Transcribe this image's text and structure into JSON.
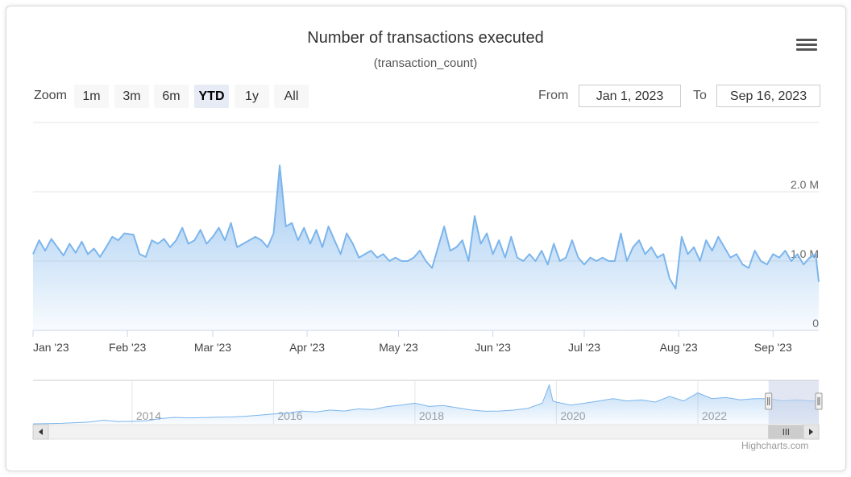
{
  "chart_data": {
    "type": "area",
    "title": "Number of transactions executed",
    "subtitle": "(transaction_count)",
    "y_ticks": [
      {
        "value": 0,
        "label": "0"
      },
      {
        "value": 1000000,
        "label": "1.0 M"
      },
      {
        "value": 2000000,
        "label": "2.0 M"
      }
    ],
    "ylim": [
      0,
      3000000
    ],
    "x_ticks": [
      {
        "date": "2023-01-01",
        "label": "Jan '23"
      },
      {
        "date": "2023-02-01",
        "label": "Feb '23"
      },
      {
        "date": "2023-03-01",
        "label": "Mar '23"
      },
      {
        "date": "2023-04-01",
        "label": "Apr '23"
      },
      {
        "date": "2023-05-01",
        "label": "May '23"
      },
      {
        "date": "2023-06-01",
        "label": "Jun '23"
      },
      {
        "date": "2023-07-01",
        "label": "Jul '23"
      },
      {
        "date": "2023-08-01",
        "label": "Aug '23"
      },
      {
        "date": "2023-09-01",
        "label": "Sep '23"
      }
    ],
    "xlim": [
      "2023-01-01",
      "2023-09-16"
    ],
    "series": [
      {
        "x": [
          "2023-01-01",
          "2023-01-03",
          "2023-01-05",
          "2023-01-07",
          "2023-01-09",
          "2023-01-11",
          "2023-01-13",
          "2023-01-15",
          "2023-01-17",
          "2023-01-19",
          "2023-01-21",
          "2023-01-23",
          "2023-01-25",
          "2023-01-27",
          "2023-01-29",
          "2023-01-31",
          "2023-02-03",
          "2023-02-05",
          "2023-02-07",
          "2023-02-09",
          "2023-02-11",
          "2023-02-13",
          "2023-02-15",
          "2023-02-17",
          "2023-02-19",
          "2023-02-21",
          "2023-02-23",
          "2023-02-25",
          "2023-02-27",
          "2023-03-01",
          "2023-03-03",
          "2023-03-05",
          "2023-03-07",
          "2023-03-09",
          "2023-03-11",
          "2023-03-13",
          "2023-03-15",
          "2023-03-17",
          "2023-03-19",
          "2023-03-21",
          "2023-03-23",
          "2023-03-25",
          "2023-03-27",
          "2023-03-29",
          "2023-03-31",
          "2023-04-02",
          "2023-04-04",
          "2023-04-06",
          "2023-04-08",
          "2023-04-10",
          "2023-04-12",
          "2023-04-14",
          "2023-04-16",
          "2023-04-18",
          "2023-04-20",
          "2023-04-22",
          "2023-04-24",
          "2023-04-26",
          "2023-04-28",
          "2023-04-30",
          "2023-05-02",
          "2023-05-04",
          "2023-05-06",
          "2023-05-08",
          "2023-05-10",
          "2023-05-12",
          "2023-05-14",
          "2023-05-16",
          "2023-05-18",
          "2023-05-20",
          "2023-05-22",
          "2023-05-24",
          "2023-05-26",
          "2023-05-28",
          "2023-05-30",
          "2023-06-01",
          "2023-06-03",
          "2023-06-05",
          "2023-06-07",
          "2023-06-09",
          "2023-06-11",
          "2023-06-13",
          "2023-06-15",
          "2023-06-17",
          "2023-06-19",
          "2023-06-21",
          "2023-06-23",
          "2023-06-25",
          "2023-06-27",
          "2023-06-29",
          "2023-07-01",
          "2023-07-03",
          "2023-07-05",
          "2023-07-07",
          "2023-07-09",
          "2023-07-11",
          "2023-07-13",
          "2023-07-15",
          "2023-07-17",
          "2023-07-19",
          "2023-07-21",
          "2023-07-23",
          "2023-07-25",
          "2023-07-27",
          "2023-07-29",
          "2023-07-31",
          "2023-08-02",
          "2023-08-04",
          "2023-08-06",
          "2023-08-08",
          "2023-08-10",
          "2023-08-12",
          "2023-08-14",
          "2023-08-16",
          "2023-08-18",
          "2023-08-20",
          "2023-08-22",
          "2023-08-24",
          "2023-08-26",
          "2023-08-28",
          "2023-08-30",
          "2023-09-01",
          "2023-09-03",
          "2023-09-05",
          "2023-09-07",
          "2023-09-09",
          "2023-09-11",
          "2023-09-13",
          "2023-09-15",
          "2023-09-16"
        ],
        "y": [
          1100000,
          1300000,
          1150000,
          1320000,
          1200000,
          1080000,
          1250000,
          1120000,
          1280000,
          1100000,
          1180000,
          1060000,
          1200000,
          1350000,
          1300000,
          1400000,
          1380000,
          1100000,
          1060000,
          1300000,
          1250000,
          1320000,
          1200000,
          1300000,
          1480000,
          1250000,
          1300000,
          1450000,
          1250000,
          1350000,
          1480000,
          1300000,
          1550000,
          1200000,
          1250000,
          1300000,
          1350000,
          1300000,
          1200000,
          1400000,
          2380000,
          1500000,
          1550000,
          1300000,
          1480000,
          1250000,
          1450000,
          1200000,
          1500000,
          1300000,
          1100000,
          1400000,
          1250000,
          1050000,
          1100000,
          1150000,
          1050000,
          1100000,
          1000000,
          1050000,
          1000000,
          1000000,
          1050000,
          1150000,
          1000000,
          900000,
          1200000,
          1500000,
          1150000,
          1200000,
          1300000,
          1000000,
          1650000,
          1250000,
          1400000,
          1100000,
          1300000,
          1050000,
          1350000,
          1050000,
          1000000,
          1100000,
          1000000,
          1150000,
          950000,
          1250000,
          1000000,
          1050000,
          1300000,
          1050000,
          950000,
          1050000,
          1000000,
          1050000,
          1000000,
          1000000,
          1400000,
          1000000,
          1200000,
          1300000,
          1100000,
          1200000,
          1050000,
          1100000,
          750000,
          600000,
          1350000,
          1100000,
          1200000,
          1000000,
          1300000,
          1150000,
          1350000,
          1200000,
          1050000,
          1100000,
          950000,
          900000,
          1150000,
          1000000,
          950000,
          1100000,
          1050000,
          1150000,
          1000000,
          1100000,
          950000,
          1050000,
          1100000,
          700000
        ]
      }
    ],
    "navigator": {
      "x_ticks": [
        {
          "year": 2014,
          "label": "2014"
        },
        {
          "year": 2016,
          "label": "2016"
        },
        {
          "year": 2018,
          "label": "2018"
        },
        {
          "year": 2020,
          "label": "2020"
        },
        {
          "year": 2022,
          "label": "2022"
        }
      ],
      "xlim": [
        2012.6,
        2023.71
      ],
      "selected_range": [
        2023.0,
        2023.71
      ],
      "series": {
        "x": [
          2012.6,
          2012.8,
          2013.0,
          2013.2,
          2013.4,
          2013.6,
          2013.8,
          2014.0,
          2014.2,
          2014.4,
          2014.6,
          2014.8,
          2015.0,
          2015.2,
          2015.4,
          2015.6,
          2015.8,
          2016.0,
          2016.2,
          2016.4,
          2016.6,
          2016.8,
          2017.0,
          2017.2,
          2017.4,
          2017.6,
          2017.8,
          2018.0,
          2018.2,
          2018.4,
          2018.6,
          2018.8,
          2019.0,
          2019.2,
          2019.4,
          2019.6,
          2019.8,
          2019.9,
          2019.95,
          2020.0,
          2020.2,
          2020.4,
          2020.6,
          2020.8,
          2021.0,
          2021.2,
          2021.4,
          2021.6,
          2021.8,
          2022.0,
          2022.2,
          2022.4,
          2022.6,
          2022.8,
          2023.0,
          2023.2,
          2023.4,
          2023.6,
          2023.71
        ],
        "y": [
          0,
          10000,
          20000,
          50000,
          80000,
          160000,
          100000,
          110000,
          130000,
          230000,
          280000,
          260000,
          270000,
          290000,
          300000,
          330000,
          380000,
          430000,
          470000,
          560000,
          520000,
          600000,
          560000,
          650000,
          620000,
          750000,
          820000,
          900000,
          760000,
          800000,
          700000,
          600000,
          550000,
          560000,
          600000,
          680000,
          900000,
          1700000,
          1000000,
          950000,
          820000,
          900000,
          1000000,
          1100000,
          1000000,
          1050000,
          950000,
          1200000,
          1000000,
          1350000,
          1100000,
          1150000,
          1050000,
          1100000,
          1100000,
          1000000,
          1050000,
          1000000,
          1000000
        ]
      }
    }
  },
  "ui": {
    "menu_icon": "hamburger-icon",
    "zoom_label": "Zoom",
    "zoom_buttons": [
      "1m",
      "3m",
      "6m",
      "YTD",
      "1y",
      "All"
    ],
    "zoom_selected": "YTD",
    "from_label": "From",
    "from_value": "Jan 1, 2023",
    "to_label": "To",
    "to_value": "Sep 16, 2023",
    "credits": "Highcharts.com",
    "colors": {
      "series": "#7cb5ec",
      "grid": "#e6e6e6",
      "nav_mask": "#c8d2e8"
    }
  }
}
